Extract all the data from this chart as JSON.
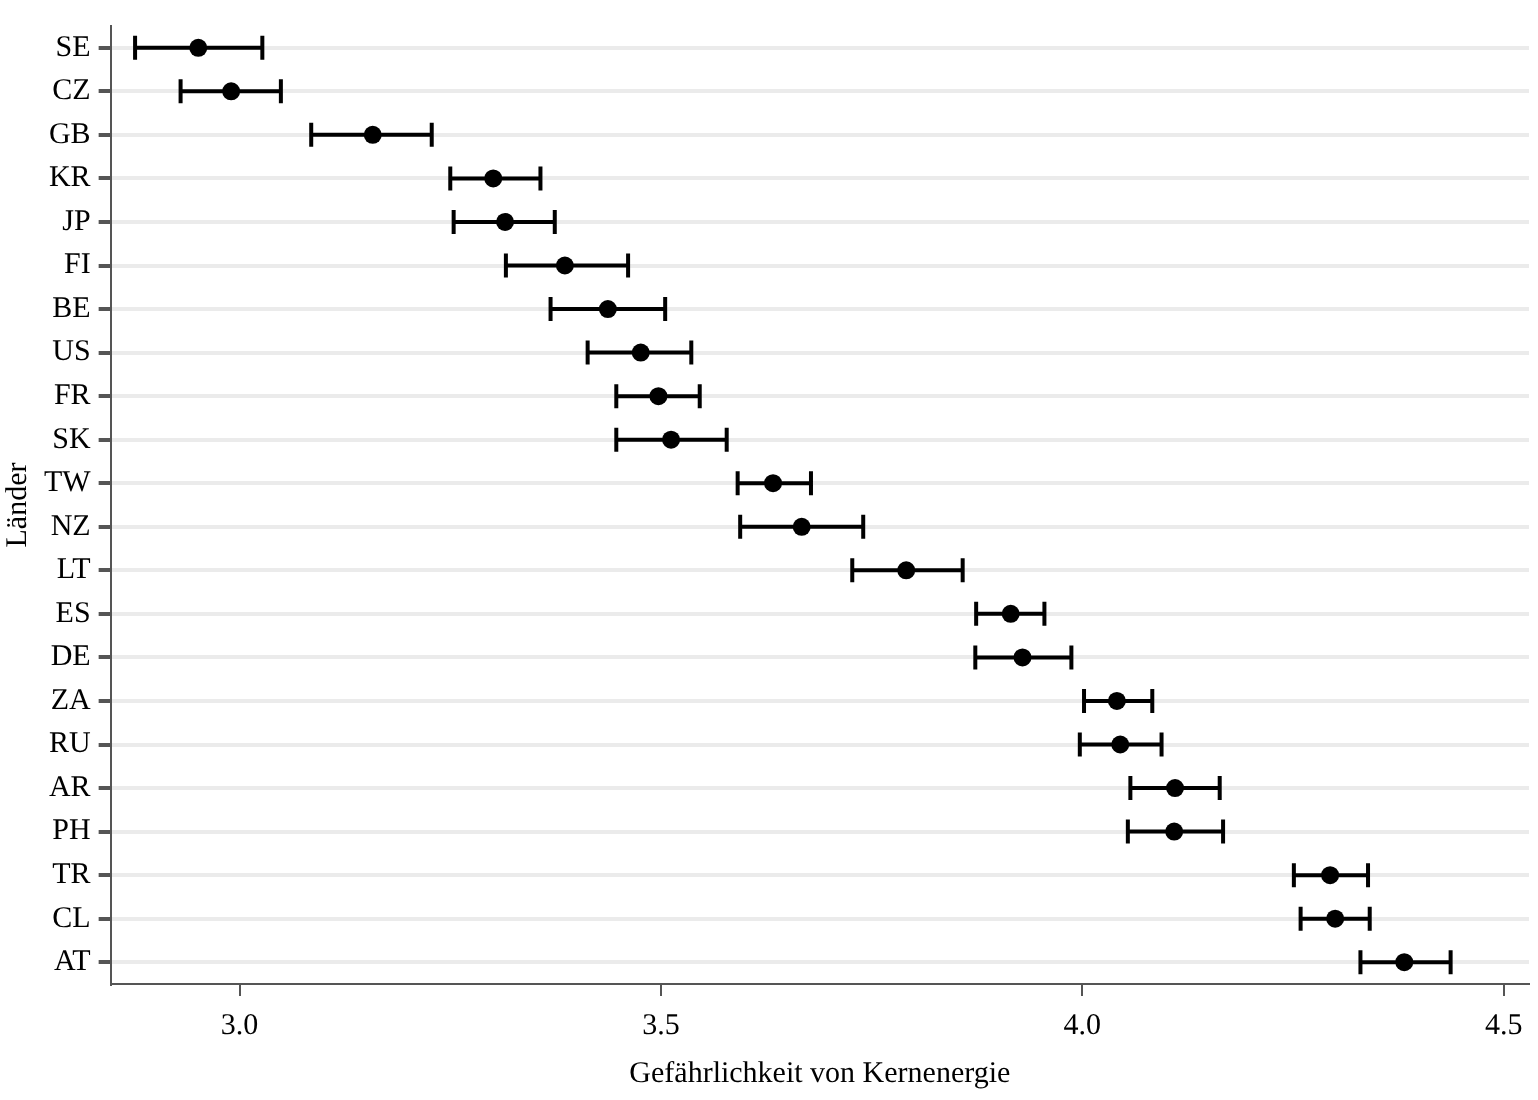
{
  "chart_data": {
    "type": "scatter",
    "orientation": "horizontal",
    "xlabel": "Gefährlichkeit von Kernenergie",
    "ylabel": "Länder",
    "categories": [
      "SE",
      "CZ",
      "GB",
      "KR",
      "JP",
      "FI",
      "BE",
      "US",
      "FR",
      "SK",
      "TW",
      "NZ",
      "LT",
      "ES",
      "DE",
      "ZA",
      "RU",
      "AR",
      "PH",
      "TR",
      "CL",
      "AT"
    ],
    "values": [
      2.951,
      2.99,
      3.158,
      3.301,
      3.315,
      3.386,
      3.437,
      3.476,
      3.497,
      3.512,
      3.633,
      3.667,
      3.791,
      3.915,
      3.929,
      4.041,
      4.045,
      4.11,
      4.109,
      4.294,
      4.3,
      4.382
    ],
    "errors": [
      [
        2.876,
        3.027
      ],
      [
        2.93,
        3.049
      ],
      [
        3.085,
        3.228
      ],
      [
        3.25,
        3.357
      ],
      [
        3.254,
        3.374
      ],
      [
        3.316,
        3.461
      ],
      [
        3.369,
        3.505
      ],
      [
        3.413,
        3.536
      ],
      [
        3.447,
        3.546
      ],
      [
        3.447,
        3.578
      ],
      [
        3.591,
        3.678
      ],
      [
        3.594,
        3.74
      ],
      [
        3.727,
        3.858
      ],
      [
        3.874,
        3.955
      ],
      [
        3.873,
        3.987
      ],
      [
        4.002,
        4.083
      ],
      [
        3.997,
        4.094
      ],
      [
        4.057,
        4.163
      ],
      [
        4.054,
        4.167
      ],
      [
        4.251,
        4.339
      ],
      [
        4.259,
        4.341
      ],
      [
        4.33,
        4.437
      ]
    ],
    "color": "#000000",
    "marker": "circle",
    "grid": "y",
    "xlim": [
      2.847,
      4.53
    ],
    "xticks": [
      {
        "value": 3,
        "label": "3.0"
      },
      {
        "value": 3.5,
        "label": "3.5"
      },
      {
        "value": 4,
        "label": "4.0"
      },
      {
        "value": 4.5,
        "label": "4.5"
      }
    ]
  }
}
